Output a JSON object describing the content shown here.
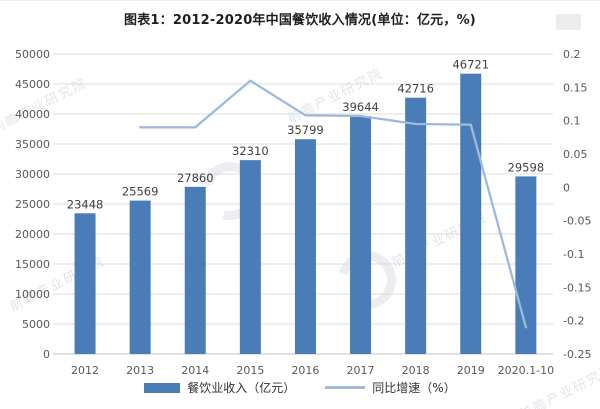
{
  "chart_data": {
    "type": "bar",
    "title": "图表1：2012-2020年中国餐饮收入情况(单位：亿元，%)",
    "categories": [
      "2012",
      "2013",
      "2014",
      "2015",
      "2016",
      "2017",
      "2018",
      "2019",
      "2020.1-10"
    ],
    "series": [
      {
        "name": "餐饮业收入（亿元）",
        "type": "bar",
        "axis": "left",
        "color": "#4a7db8",
        "values": [
          23448,
          25569,
          27860,
          32310,
          35799,
          39644,
          42716,
          46721,
          29598
        ]
      },
      {
        "name": "同比增速（%）",
        "type": "line",
        "axis": "right",
        "color": "#9dbadd",
        "values": [
          null,
          0.09,
          0.09,
          0.16,
          0.108,
          0.107,
          0.095,
          0.094,
          -0.21
        ]
      }
    ],
    "left_axis": {
      "min": 0,
      "max": 50000,
      "step": 5000,
      "tick_labels": [
        "0",
        "5000",
        "10000",
        "15000",
        "20000",
        "25000",
        "30000",
        "35000",
        "40000",
        "45000",
        "50000"
      ]
    },
    "right_axis": {
      "min": -0.25,
      "max": 0.2,
      "step": 0.05,
      "tick_labels": [
        "-0.25",
        "-0.2",
        "-0.15",
        "-0.1",
        "-0.05",
        "0",
        "0.05",
        "0.1",
        "0.15",
        "0.2"
      ]
    },
    "grid": true,
    "legend_position": "bottom"
  },
  "watermark": {
    "text": "前瞻产业研究院"
  },
  "colors": {
    "bar": "#4a7db8",
    "line": "#9dbadd",
    "grid": "#dcdcdc",
    "axis_line": "#c3c3c3",
    "tick_text": "#595959",
    "value_text": "#404040",
    "title_text": "#1f1f1f"
  }
}
